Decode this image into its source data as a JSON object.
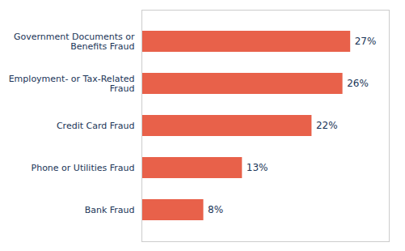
{
  "chart_data": {
    "type": "bar",
    "orientation": "horizontal",
    "categories": [
      "Bank Fraud",
      "Phone or Utilities Fraud",
      "Credit Card Fraud",
      "Employment- or Tax-Related\nFraud",
      "Government Documents or\nBenefits Fraud"
    ],
    "values": [
      8,
      13,
      22,
      26,
      27
    ],
    "value_labels": [
      "8%",
      "13%",
      "22%",
      "26%",
      "27%"
    ],
    "color": "#E8614A",
    "xlim": [
      0,
      32
    ],
    "data_labels": true,
    "tick_labels": "y",
    "grid": false
  }
}
